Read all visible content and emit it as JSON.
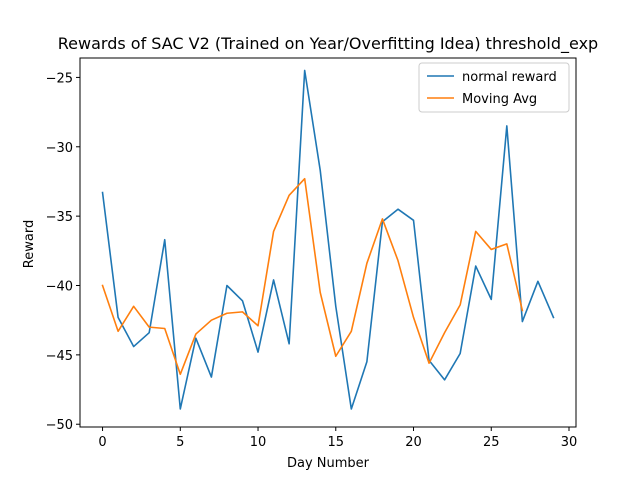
{
  "chart_data": {
    "type": "line",
    "title": "Rewards of SAC V2 (Trained on Year/Overfitting Idea) threshold_exp",
    "xlabel": "Day Number",
    "ylabel": "Reward",
    "xlim": [
      -1.45,
      30.45
    ],
    "ylim": [
      -50.2,
      -23.6
    ],
    "xticks": [
      0,
      5,
      10,
      15,
      20,
      25,
      30
    ],
    "yticks": [
      -50,
      -45,
      -40,
      -35,
      -30,
      -25
    ],
    "xtick_labels": [
      "0",
      "5",
      "10",
      "15",
      "20",
      "25",
      "30"
    ],
    "ytick_labels": [
      "−50",
      "−45",
      "−40",
      "−35",
      "−30",
      "−25"
    ],
    "grid": false,
    "legend_position": "top-right",
    "series": [
      {
        "name": "normal reward",
        "color": "#1f77b4",
        "x": [
          0,
          1,
          2,
          3,
          4,
          5,
          6,
          7,
          8,
          9,
          10,
          11,
          12,
          13,
          14,
          15,
          16,
          17,
          18,
          19,
          20,
          21,
          22,
          23,
          24,
          25,
          26,
          27,
          28,
          29
        ],
        "y": [
          -33.3,
          -42.3,
          -44.4,
          -43.4,
          -36.7,
          -48.9,
          -43.8,
          -46.6,
          -40.0,
          -41.1,
          -44.8,
          -39.6,
          -44.2,
          -24.5,
          -31.7,
          -41.5,
          -48.9,
          -45.5,
          -35.4,
          -34.5,
          -35.3,
          -45.4,
          -46.8,
          -44.9,
          -38.6,
          -41.0,
          -28.5,
          -42.6,
          -39.7,
          -42.3
        ]
      },
      {
        "name": "Moving Avg",
        "color": "#ff7f0e",
        "x": [
          0,
          1,
          2,
          3,
          4,
          5,
          6,
          7,
          8,
          9,
          10,
          11,
          12,
          13,
          14,
          15,
          16,
          17,
          18,
          19,
          20,
          21,
          22,
          23,
          24,
          25,
          26,
          27
        ],
        "y": [
          -40.0,
          -43.3,
          -41.5,
          -43.0,
          -43.1,
          -46.4,
          -43.5,
          -42.5,
          -42.0,
          -41.9,
          -42.9,
          -36.1,
          -33.5,
          -32.3,
          -40.5,
          -45.1,
          -43.3,
          -38.4,
          -35.2,
          -38.2,
          -42.3,
          -45.6,
          -43.4,
          -41.4,
          -36.1,
          -37.4,
          -37.0,
          -41.8
        ]
      }
    ]
  }
}
